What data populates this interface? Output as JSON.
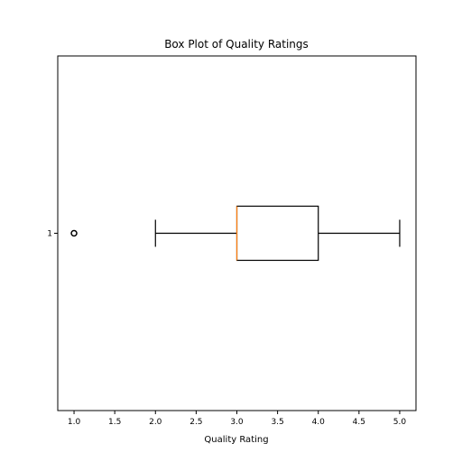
{
  "chart_data": {
    "type": "boxplot",
    "orientation": "horizontal",
    "title": "Box Plot of Quality Ratings",
    "xlabel": "Quality Rating",
    "ylabel": "",
    "xlim": [
      0.8,
      5.2
    ],
    "x_ticks": [
      1.0,
      1.5,
      2.0,
      2.5,
      3.0,
      3.5,
      4.0,
      4.5,
      5.0
    ],
    "x_tick_labels": [
      "1.0",
      "1.5",
      "2.0",
      "2.5",
      "3.0",
      "3.5",
      "4.0",
      "4.5",
      "5.0"
    ],
    "y_tick_labels": [
      "1"
    ],
    "boxes": [
      {
        "position": 1,
        "whisker_low": 2.0,
        "q1": 3.0,
        "median": 3.0,
        "q3": 4.0,
        "whisker_high": 5.0,
        "outliers": [
          1.0
        ]
      }
    ],
    "grid": false,
    "colors": {
      "box": "#000000",
      "median": "#ff7f0e",
      "outlier": "#000000"
    }
  }
}
